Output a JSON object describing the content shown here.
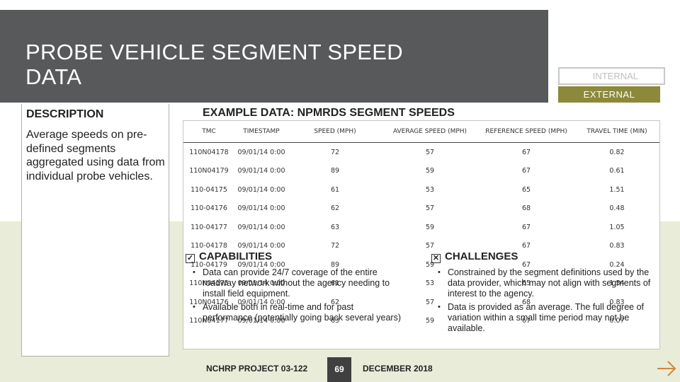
{
  "slide": {
    "title": "PROBE VEHICLE SEGMENT SPEED DATA",
    "page_number": "69"
  },
  "toggles": {
    "internal_label": "INTERNAL",
    "external_label": "EXTERNAL"
  },
  "description": {
    "heading": "DESCRIPTION",
    "text": "Average speeds on pre-defined segments aggregated using data from individual probe vehicles."
  },
  "example": {
    "title": "EXAMPLE DATA: NPMRDS SEGMENT SPEEDS",
    "columns": [
      "TMC",
      "TIMESTAMP",
      "SPEED (MPH)",
      "AVERAGE SPEED (MPH)",
      "REFERENCE SPEED (MPH)",
      "TRAVEL TIME (MIN)"
    ],
    "rows": [
      [
        "110N04178",
        "09/01/14 0:00",
        "72",
        "57",
        "67",
        "0.82"
      ],
      [
        "110N04179",
        "09/01/14 0:00",
        "89",
        "59",
        "67",
        "0.61"
      ],
      [
        "110-04175",
        "09/01/14 0:00",
        "61",
        "53",
        "65",
        "1.51"
      ],
      [
        "110-04176",
        "09/01/14 0:00",
        "62",
        "57",
        "68",
        "0.48"
      ],
      [
        "110-04177",
        "09/01/14 0:00",
        "63",
        "59",
        "67",
        "1.05"
      ],
      [
        "110-04178",
        "09/01/14 0:00",
        "72",
        "57",
        "67",
        "0.83"
      ],
      [
        "110-04179",
        "09/01/14 0:00",
        "89",
        "59",
        "67",
        "0.24"
      ],
      [
        "110N04175",
        "09/01/14 0:00",
        "61",
        "53",
        "65",
        "1.54"
      ],
      [
        "110N04176",
        "09/01/14 0:00",
        "62",
        "57",
        "68",
        "0.83"
      ],
      [
        "110N04177",
        "09/01/14 0:00",
        "63",
        "59",
        "67",
        "0.07"
      ]
    ]
  },
  "capabilities": {
    "heading": "CAPABILITIES",
    "icon": "checked-box-icon",
    "items": [
      "Data can provide 24/7 coverage of the entire roadway network without the agency needing to install field equipment.",
      "Available both in real-time and for past performance (potentially going back several years)"
    ]
  },
  "challenges": {
    "heading": "CHALLENGES",
    "icon": "x-box-icon",
    "items": [
      "Constrained by the segment definitions used by the data provider, which may not align with segments of interest to the agency.",
      "Data is provided as an average. The full degree of variation within a small time period may not be available."
    ]
  },
  "footer": {
    "project": "NCHRP PROJECT 03-122",
    "date": "DECEMBER 2018"
  },
  "colors": {
    "header_band": "#58595b",
    "accent_olive": "#8c8a3a",
    "lower_band": "#e8ecd9",
    "arrow": "#d4863a"
  }
}
